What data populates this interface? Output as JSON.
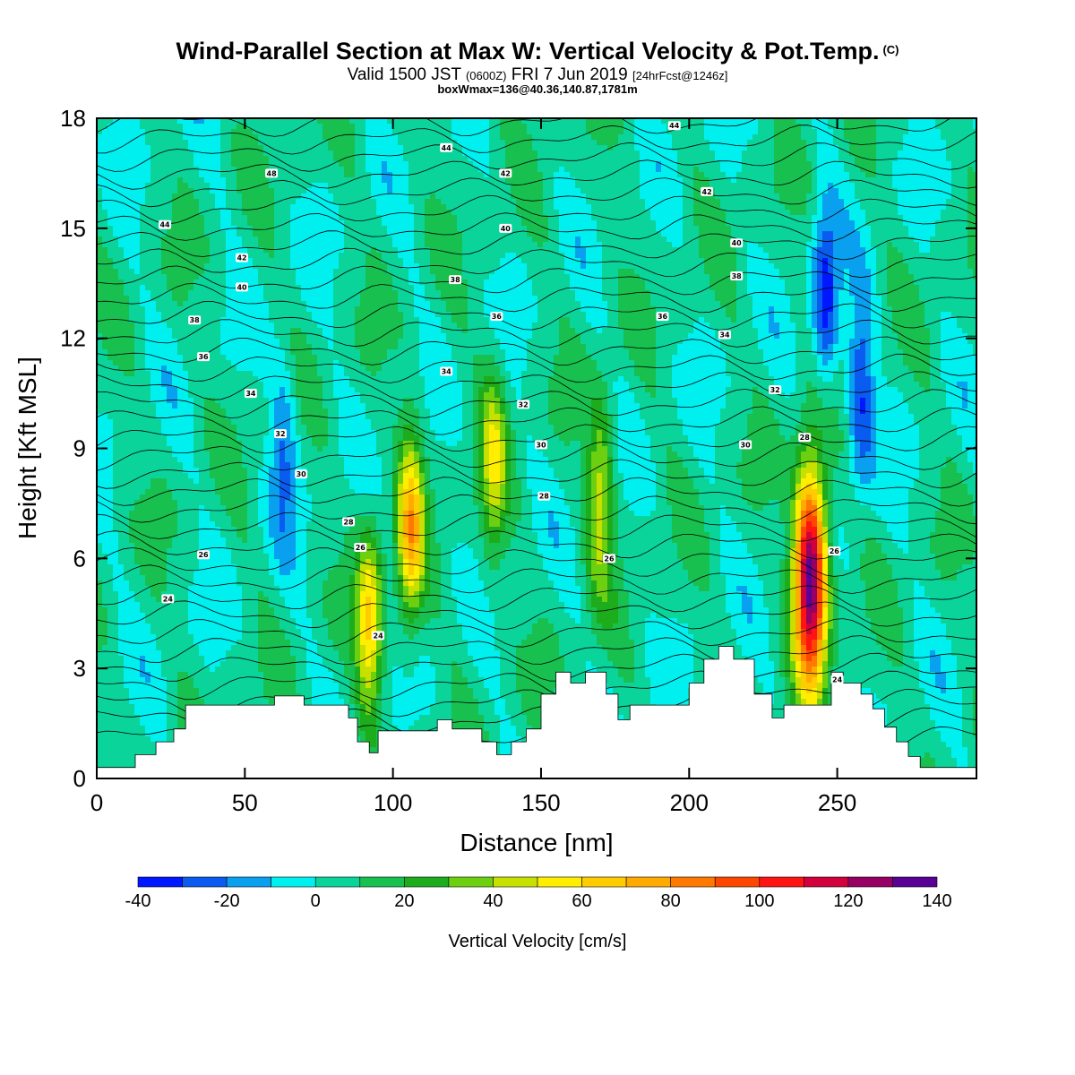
{
  "chart_data": {
    "type": "heatmap",
    "title": "Wind-Parallel Section at Max W: Vertical Velocity & Pot.Temp.",
    "title_suffix": "(C)",
    "subtitle_main": "Valid 1500 JST",
    "subtitle_z": "(0600Z)",
    "subtitle_date": "FRI 7 Jun 2019",
    "subtitle_fcst": "[24hrFcst@1246z]",
    "subtitle2": "boxWmax=136@40.36,140.87,1781m",
    "xlabel": "Distance [nm]",
    "ylabel": "Height [Kft MSL]",
    "xlim": [
      0,
      297
    ],
    "ylim": [
      0,
      18
    ],
    "x_ticks": [
      0,
      50,
      100,
      150,
      200,
      250
    ],
    "y_ticks": [
      0,
      3,
      6,
      9,
      12,
      15,
      18
    ],
    "colorbar": {
      "label": "Vertical Velocity [cm/s]",
      "levels": [
        -40,
        -30,
        -20,
        -10,
        0,
        10,
        20,
        30,
        40,
        50,
        60,
        70,
        80,
        90,
        100,
        110,
        120,
        130,
        140
      ],
      "tick_labels": [
        "-40",
        "-20",
        "0",
        "20",
        "40",
        "60",
        "80",
        "100",
        "120",
        "140"
      ],
      "colors": [
        "#0018ff",
        "#0a5cf0",
        "#0aa0f0",
        "#00f0f0",
        "#0ad49a",
        "#18c050",
        "#1cac1c",
        "#6cd010",
        "#c8e000",
        "#ffee00",
        "#ffcc00",
        "#ffaa00",
        "#ff7800",
        "#ff4600",
        "#ff1414",
        "#d2003c",
        "#960064",
        "#5a0096"
      ]
    },
    "updraft_cores": [
      {
        "x": 92,
        "z": 4.2,
        "w": 55
      },
      {
        "x": 106,
        "z": 6.8,
        "w": 65
      },
      {
        "x": 134,
        "z": 8.6,
        "w": 40
      },
      {
        "x": 170,
        "z": 7.6,
        "w": 42
      },
      {
        "x": 241,
        "z": 5.5,
        "w": 136
      }
    ],
    "downdraft_cores": [
      {
        "x": 246,
        "z": 13.0,
        "w": -40
      },
      {
        "x": 258,
        "z": 10.5,
        "w": -35
      },
      {
        "x": 63,
        "z": 9.0,
        "w": -25
      }
    ],
    "terrain": {
      "x": [
        0,
        13,
        13,
        20,
        20,
        26,
        26,
        30,
        30,
        60,
        60,
        70,
        70,
        85,
        85,
        88,
        88,
        92,
        92,
        95,
        95,
        115,
        115,
        120,
        120,
        130,
        130,
        135,
        135,
        140,
        140,
        145,
        145,
        150,
        150,
        155,
        155,
        160,
        160,
        165,
        165,
        172,
        172,
        176,
        176,
        180,
        180,
        200,
        200,
        205,
        205,
        210,
        210,
        215,
        215,
        222,
        222,
        228,
        228,
        232,
        232,
        248,
        248,
        252,
        252,
        258,
        258,
        262,
        262,
        266,
        266,
        270,
        270,
        274,
        274,
        278,
        278,
        280,
        297
      ],
      "z": [
        0.3,
        0.3,
        0.65,
        0.65,
        1.0,
        1.0,
        1.35,
        1.35,
        2.0,
        2.0,
        2.25,
        2.25,
        2.0,
        2.0,
        1.65,
        1.65,
        1.0,
        1.0,
        0.7,
        0.7,
        1.3,
        1.3,
        1.6,
        1.6,
        1.35,
        1.35,
        1.0,
        1.0,
        0.65,
        0.65,
        1.0,
        1.0,
        1.35,
        1.35,
        2.3,
        2.3,
        2.9,
        2.9,
        2.6,
        2.6,
        2.9,
        2.9,
        2.3,
        2.3,
        1.6,
        1.6,
        2.0,
        2.0,
        2.6,
        2.6,
        3.25,
        3.25,
        3.6,
        3.6,
        3.25,
        3.25,
        2.3,
        2.3,
        1.65,
        1.65,
        2.0,
        2.0,
        2.9,
        2.9,
        2.6,
        2.6,
        2.3,
        2.3,
        1.9,
        1.9,
        1.4,
        1.4,
        1.0,
        1.0,
        0.6,
        0.6,
        0.3,
        0.3,
        0.3
      ]
    },
    "contour_labels": [
      {
        "text": "44",
        "x": 23,
        "z": 15.1
      },
      {
        "text": "42",
        "x": 49,
        "z": 14.2
      },
      {
        "text": "40",
        "x": 49,
        "z": 13.4
      },
      {
        "text": "38",
        "x": 33,
        "z": 12.5
      },
      {
        "text": "36",
        "x": 36,
        "z": 11.5
      },
      {
        "text": "34",
        "x": 52,
        "z": 10.5
      },
      {
        "text": "48",
        "x": 59,
        "z": 16.5
      },
      {
        "text": "32",
        "x": 62,
        "z": 9.4
      },
      {
        "text": "30",
        "x": 69,
        "z": 8.3
      },
      {
        "text": "28",
        "x": 85,
        "z": 7.0
      },
      {
        "text": "26",
        "x": 89,
        "z": 6.3
      },
      {
        "text": "26",
        "x": 36,
        "z": 6.1
      },
      {
        "text": "24",
        "x": 24,
        "z": 4.9
      },
      {
        "text": "24",
        "x": 95,
        "z": 3.9
      },
      {
        "text": "44",
        "x": 118,
        "z": 17.2
      },
      {
        "text": "42",
        "x": 138,
        "z": 16.5
      },
      {
        "text": "40",
        "x": 138,
        "z": 15.0
      },
      {
        "text": "38",
        "x": 121,
        "z": 13.6
      },
      {
        "text": "36",
        "x": 135,
        "z": 12.6
      },
      {
        "text": "34",
        "x": 118,
        "z": 11.1
      },
      {
        "text": "32",
        "x": 144,
        "z": 10.2
      },
      {
        "text": "30",
        "x": 150,
        "z": 9.1
      },
      {
        "text": "28",
        "x": 151,
        "z": 7.7
      },
      {
        "text": "26",
        "x": 173,
        "z": 6.0
      },
      {
        "text": "44",
        "x": 195,
        "z": 17.8
      },
      {
        "text": "42",
        "x": 206,
        "z": 16.0
      },
      {
        "text": "40",
        "x": 216,
        "z": 14.6
      },
      {
        "text": "38",
        "x": 216,
        "z": 13.7
      },
      {
        "text": "36",
        "x": 191,
        "z": 12.6
      },
      {
        "text": "34",
        "x": 212,
        "z": 12.1
      },
      {
        "text": "32",
        "x": 229,
        "z": 10.6
      },
      {
        "text": "30",
        "x": 219,
        "z": 9.1
      },
      {
        "text": "28",
        "x": 239,
        "z": 9.3
      },
      {
        "text": "26",
        "x": 249,
        "z": 6.2
      },
      {
        "text": "24",
        "x": 250,
        "z": 2.7
      }
    ]
  }
}
